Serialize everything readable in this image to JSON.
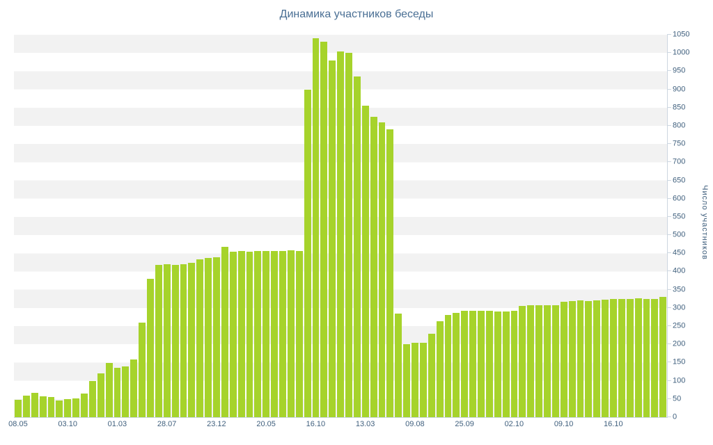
{
  "colors": {
    "bar": "#a6d32b",
    "band": "#f2f2f2",
    "axis": "#ccd6e0",
    "text": "#3f5f7d",
    "title": "#4a6f94"
  },
  "chart_data": {
    "type": "bar",
    "title": "Динамика участников беседы",
    "xlabel": "",
    "ylabel": "Число участников",
    "ylim": [
      0,
      1050
    ],
    "grid": "alternate-horizontal-bands",
    "legend": "none",
    "y_axis_side": "right",
    "y_ticks": [
      0,
      50,
      100,
      150,
      200,
      250,
      300,
      350,
      400,
      450,
      500,
      550,
      600,
      650,
      700,
      750,
      800,
      850,
      900,
      950,
      1000,
      1050
    ],
    "x_tick_labels": [
      "08.05",
      "03.10",
      "01.03",
      "28.07",
      "23.12",
      "20.05",
      "16.10",
      "13.03",
      "09.08",
      "25.09",
      "02.10",
      "09.10",
      "16.10"
    ],
    "x_tick_every": 6,
    "values": [
      48,
      60,
      67,
      58,
      55,
      45,
      50,
      52,
      65,
      100,
      120,
      148,
      135,
      140,
      158,
      260,
      380,
      418,
      420,
      418,
      420,
      424,
      433,
      437,
      439,
      468,
      455,
      456,
      455,
      456,
      456,
      457,
      457,
      458,
      457,
      900,
      1040,
      1030,
      980,
      1005,
      1000,
      935,
      855,
      825,
      810,
      790,
      285,
      200,
      205,
      205,
      230,
      263,
      280,
      287,
      293,
      293,
      293,
      292,
      290,
      290,
      293,
      305,
      308,
      307,
      308,
      308,
      317,
      318,
      320,
      318,
      320,
      322,
      325,
      325,
      324,
      326,
      325,
      325,
      330
    ]
  }
}
